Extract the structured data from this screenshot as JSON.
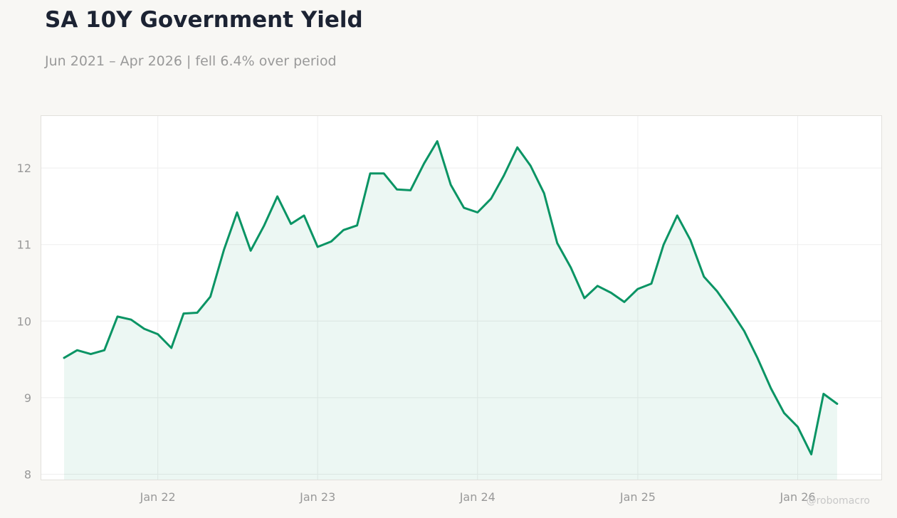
{
  "header": {
    "title": "SA 10Y Government Yield",
    "subtitle": "Jun 2021 – Apr 2026 | fell 6.4% over period"
  },
  "watermark": "@robomacro",
  "colors": {
    "line": "#0a9464",
    "fill": "#0a9464",
    "background": "#f8f7f4",
    "plot_background": "#ffffff",
    "grid": "#eeeeee",
    "tick_text": "#999999"
  },
  "chart_data": {
    "type": "area",
    "title": "SA 10Y Government Yield",
    "subtitle": "Jun 2021 – Apr 2026 | fell 6.4% over period",
    "xlabel": "",
    "ylabel": "",
    "grid": true,
    "legend": "none",
    "x_ticks": [
      "Jan 22",
      "Jan 23",
      "Jan 24",
      "Jan 25",
      "Jan 26"
    ],
    "y_ticks": [
      8,
      9,
      10,
      11,
      12
    ],
    "xlim": [
      "2021-04-10",
      "2026-07-11"
    ],
    "ylim": [
      7.93,
      12.68
    ],
    "x": [
      "2021-06",
      "2021-07",
      "2021-08",
      "2021-09",
      "2021-10",
      "2021-11",
      "2021-12",
      "2022-01",
      "2022-02",
      "2022-03",
      "2022-04",
      "2022-05",
      "2022-06",
      "2022-07",
      "2022-08",
      "2022-09",
      "2022-10",
      "2022-11",
      "2022-12",
      "2023-01",
      "2023-02",
      "2023-03",
      "2023-04",
      "2023-05",
      "2023-06",
      "2023-07",
      "2023-08",
      "2023-09",
      "2023-10",
      "2023-11",
      "2023-12",
      "2024-01",
      "2024-02",
      "2024-03",
      "2024-04",
      "2024-05",
      "2024-06",
      "2024-07",
      "2024-08",
      "2024-09",
      "2024-10",
      "2024-11",
      "2024-12",
      "2025-01",
      "2025-02",
      "2025-03",
      "2025-04",
      "2025-05",
      "2025-06",
      "2025-07",
      "2025-08",
      "2025-09",
      "2025-10",
      "2025-11",
      "2025-12",
      "2026-01",
      "2026-02",
      "2026-03",
      "2026-04"
    ],
    "values": [
      9.52,
      9.62,
      9.57,
      9.62,
      10.06,
      10.02,
      9.9,
      9.83,
      9.65,
      10.1,
      10.11,
      10.32,
      10.93,
      11.42,
      10.92,
      11.25,
      11.63,
      11.27,
      11.38,
      10.97,
      11.04,
      11.19,
      11.25,
      11.93,
      11.93,
      11.72,
      11.71,
      12.06,
      12.35,
      11.78,
      11.48,
      11.42,
      11.6,
      11.9,
      12.27,
      12.03,
      11.67,
      11.02,
      10.7,
      10.3,
      10.46,
      10.37,
      10.25,
      10.42,
      10.49,
      11.0,
      11.38,
      11.06,
      10.58,
      10.39,
      10.14,
      9.87,
      9.52,
      9.12,
      8.8,
      8.62,
      8.26,
      9.05,
      8.92
    ]
  }
}
